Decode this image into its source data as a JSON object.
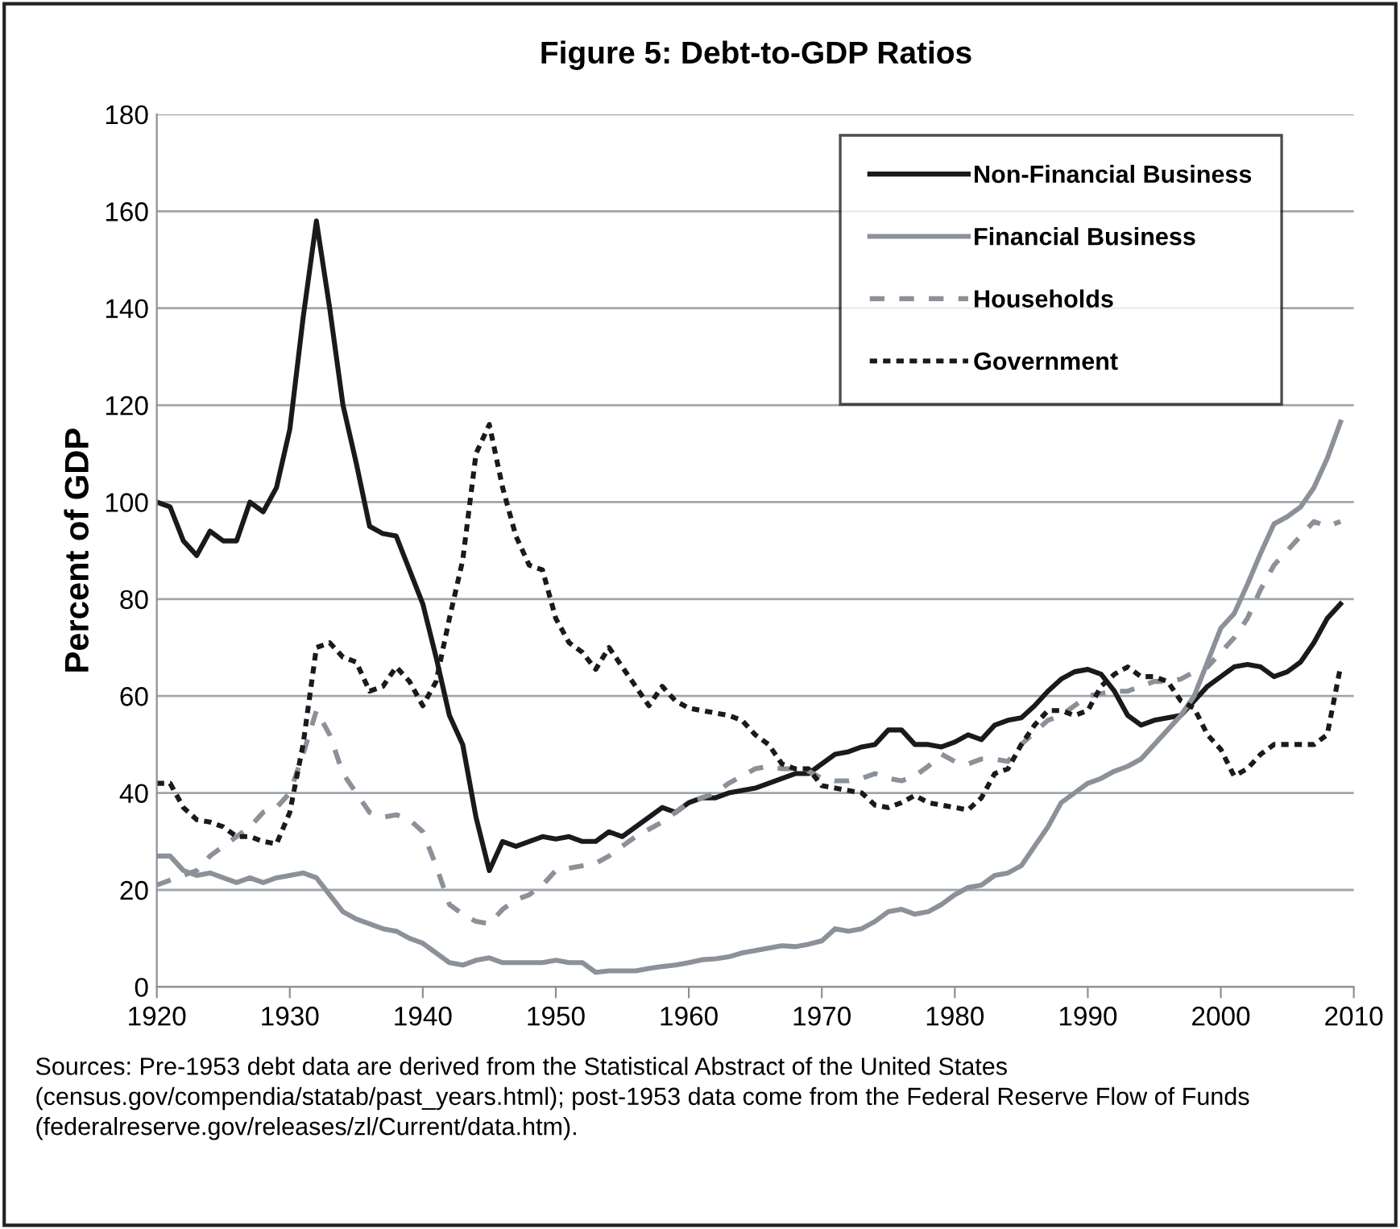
{
  "chart_data": {
    "type": "line",
    "title": "Figure 5: Debt-to-GDP Ratios",
    "ylabel": "Percent of GDP",
    "annotations": [
      "Sources: Pre-1953 debt data are derived from the Statistical Abstract of the United States (census.gov/compendia/statab/past_years.html); post-1953 data come from the Federal Reserve Flow of Funds (federalreserve.gov/releases/zl/Current/data.htm)."
    ],
    "x": [
      1920,
      1921,
      1922,
      1923,
      1924,
      1925,
      1926,
      1927,
      1928,
      1929,
      1930,
      1931,
      1932,
      1933,
      1934,
      1935,
      1936,
      1937,
      1938,
      1939,
      1940,
      1941,
      1942,
      1943,
      1944,
      1945,
      1946,
      1947,
      1948,
      1949,
      1950,
      1951,
      1952,
      1953,
      1954,
      1955,
      1956,
      1957,
      1958,
      1959,
      1960,
      1961,
      1962,
      1963,
      1964,
      1965,
      1966,
      1967,
      1968,
      1969,
      1970,
      1971,
      1972,
      1973,
      1974,
      1975,
      1976,
      1977,
      1978,
      1979,
      1980,
      1981,
      1982,
      1983,
      1984,
      1985,
      1986,
      1987,
      1988,
      1989,
      1990,
      1991,
      1992,
      1993,
      1994,
      1995,
      1996,
      1997,
      1998,
      1999,
      2000,
      2001,
      2002,
      2003,
      2004,
      2005,
      2006,
      2007,
      2008,
      2009
    ],
    "series": [
      {
        "name": "Non-Financial Business",
        "color": "#1a1a1a",
        "line_style": "solid",
        "values": [
          100,
          99,
          92,
          89,
          94,
          92,
          92,
          100,
          98,
          103,
          115,
          138,
          158,
          140,
          120,
          108,
          95,
          93.5,
          93,
          86,
          79,
          68,
          56,
          50,
          35,
          24,
          30,
          29,
          30,
          31,
          30.5,
          31,
          30,
          30,
          32,
          31,
          33,
          35,
          37,
          36,
          38,
          39,
          39,
          40,
          40.5,
          41,
          42,
          43,
          44,
          44,
          46,
          48,
          48.5,
          49.5,
          50,
          53,
          53,
          50,
          50,
          49.5,
          50.5,
          52,
          51,
          54,
          55,
          55.5,
          58,
          61,
          63.5,
          65,
          65.5,
          64.5,
          61,
          56,
          54,
          55,
          55.5,
          56,
          59,
          62,
          64,
          66,
          66.5,
          66,
          64,
          65,
          67,
          71,
          76,
          79
        ]
      },
      {
        "name": "Financial Business",
        "color": "#8c9199",
        "line_style": "solid",
        "values": [
          27,
          27,
          24,
          23,
          23.5,
          22.5,
          21.5,
          22.5,
          21.5,
          22.5,
          23,
          23.5,
          22.5,
          19,
          15.5,
          14,
          13,
          12,
          11.5,
          10,
          9,
          7,
          5,
          4.5,
          5.5,
          6,
          5,
          5,
          5,
          5,
          5.5,
          5,
          5,
          3,
          3.3,
          3.3,
          3.3,
          3.8,
          4.2,
          4.5,
          5,
          5.6,
          5.8,
          6.2,
          7,
          7.5,
          8,
          8.5,
          8.3,
          8.8,
          9.5,
          12,
          11.5,
          12,
          13.5,
          15.5,
          16,
          15,
          15.5,
          17,
          19,
          20.5,
          21,
          23,
          23.5,
          25,
          29,
          33,
          38,
          40,
          42,
          43,
          44.5,
          45.5,
          47,
          50,
          53,
          56,
          60,
          67,
          74,
          77,
          83,
          89.5,
          95.5,
          97,
          99,
          103,
          109,
          116.5
        ]
      },
      {
        "name": "Households",
        "color": "#8c9199",
        "line_style": "dashed",
        "values": [
          21,
          22,
          23,
          24,
          27,
          29,
          31,
          33,
          36,
          37,
          40,
          48,
          57,
          52,
          44,
          40,
          36,
          35,
          35.5,
          34.5,
          32,
          25,
          17,
          15,
          13.5,
          13,
          16,
          18,
          19,
          21,
          24,
          24.5,
          25,
          25.5,
          27,
          29,
          31,
          32.5,
          34,
          36,
          38,
          39,
          40,
          42,
          43.5,
          45,
          45.5,
          45,
          45,
          44.5,
          43,
          42.5,
          42.5,
          43,
          44,
          43,
          42.5,
          43.5,
          45.5,
          48,
          46.5,
          46,
          47,
          47,
          46.5,
          50,
          52.5,
          55,
          56,
          58,
          60,
          60.5,
          61,
          61,
          62,
          63,
          63,
          63.5,
          65,
          66,
          69,
          72,
          76,
          82,
          87,
          90,
          93,
          96,
          95,
          96
        ]
      },
      {
        "name": "Government",
        "color": "#1a1a1a",
        "line_style": "dotted",
        "values": [
          42,
          42,
          37,
          34.5,
          34,
          33,
          31,
          31,
          30,
          29.5,
          36,
          50,
          70,
          71,
          68,
          67,
          61,
          62,
          66,
          63,
          58,
          63,
          76,
          88,
          110,
          116,
          103,
          93,
          87,
          86,
          76,
          71,
          69,
          65.5,
          70,
          66,
          62,
          58,
          62,
          59,
          57.5,
          57,
          56.5,
          56,
          55,
          52,
          50,
          46,
          45,
          45,
          41.5,
          41,
          40.5,
          40,
          37.5,
          37,
          38,
          39.5,
          38,
          37.5,
          37,
          36.5,
          39,
          44,
          45,
          50,
          54,
          57,
          57,
          56,
          57,
          62,
          64.5,
          66,
          64,
          64,
          63,
          59,
          57.5,
          52,
          49,
          43.5,
          45,
          48,
          50,
          50,
          50,
          50,
          52,
          66
        ]
      }
    ],
    "xlim": [
      1920,
      2010
    ],
    "xticks": [
      1920,
      1930,
      1940,
      1950,
      1960,
      1970,
      1980,
      1990,
      2000,
      2010
    ],
    "ylim": [
      0,
      180
    ],
    "yticks": [
      0,
      20,
      40,
      60,
      80,
      100,
      120,
      140,
      160,
      180
    ],
    "grid": "y",
    "legend": "top right"
  }
}
